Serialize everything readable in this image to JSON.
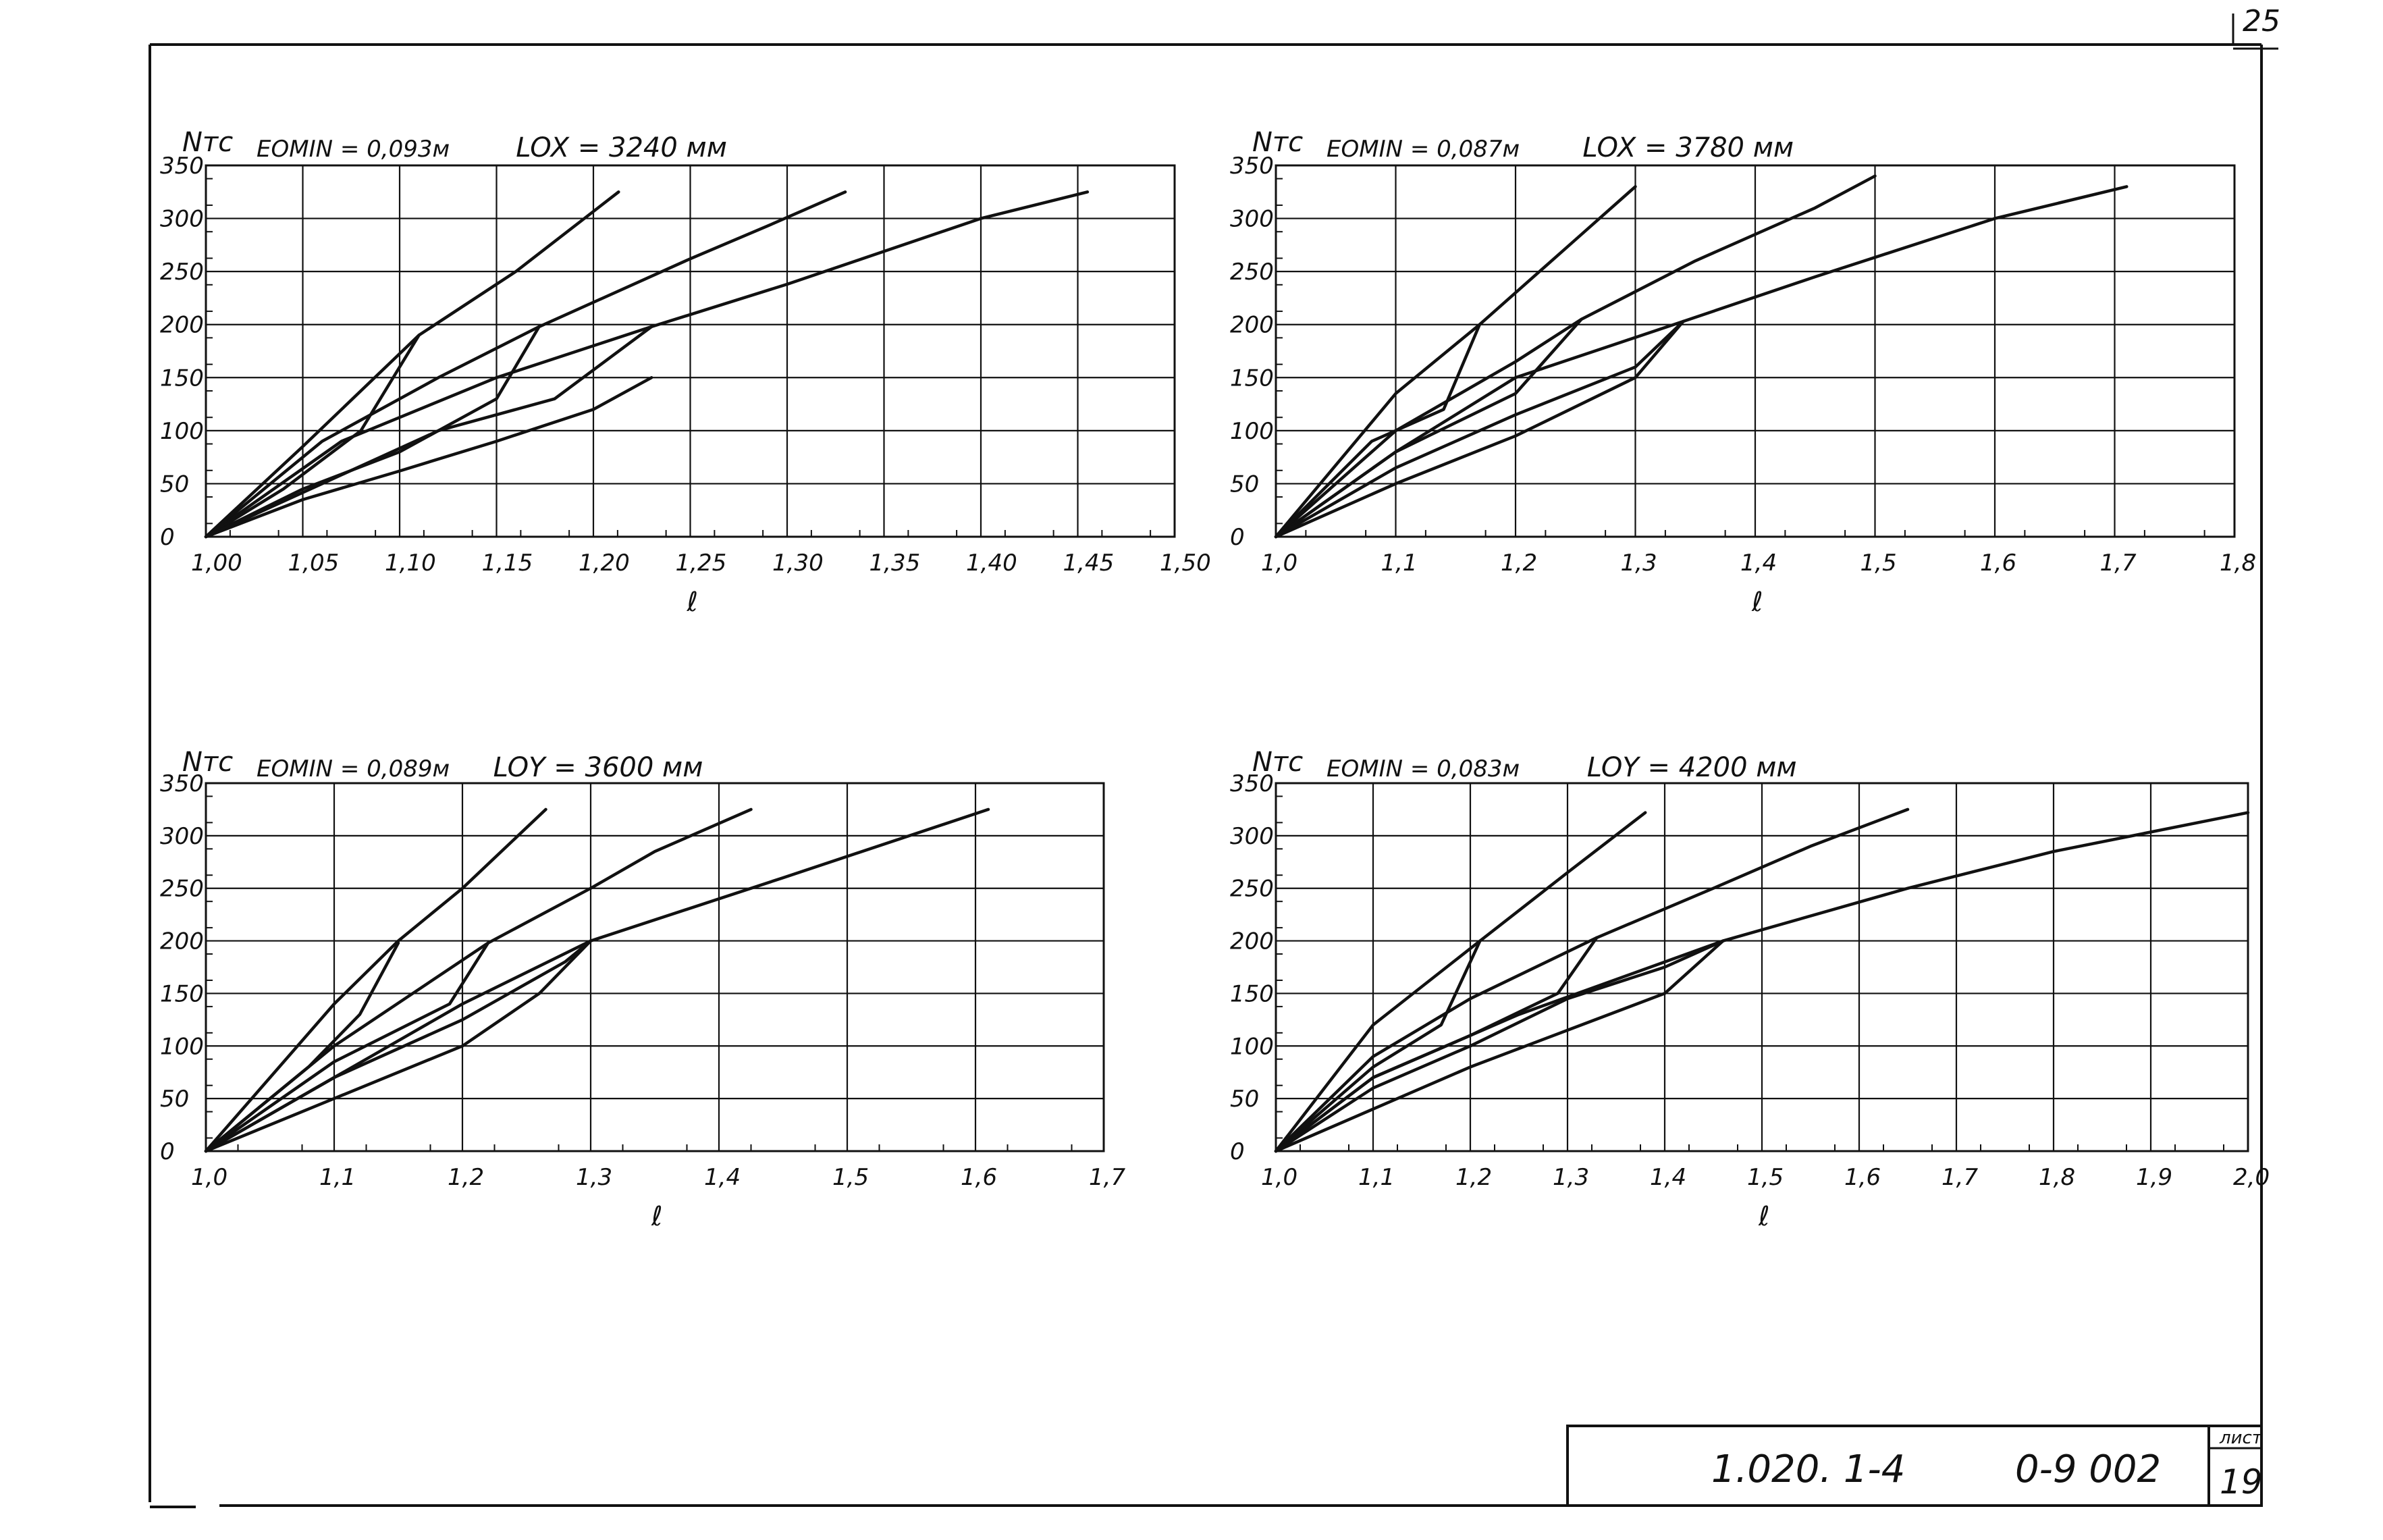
{
  "page_number": "25",
  "stamp": {
    "code": "1.020. 1-4",
    "doc": "0-9 002",
    "sheet_label": "лист",
    "sheet_number": "19"
  },
  "chart_data": [
    {
      "type": "line",
      "ylabel": "Nтс",
      "xlabel": "ℓ",
      "eomin_label": "EOMIN = 0,093м",
      "l_label": "LOX = 3240 мм",
      "xlim": [
        1.0,
        1.5
      ],
      "ylim": [
        0,
        350
      ],
      "grid": true,
      "x_ticks": [
        "1,00",
        "1,05",
        "1,10",
        "1,15",
        "1,20",
        "1,25",
        "1,30",
        "1,35",
        "1,40",
        "1,45",
        "1,50"
      ],
      "y_ticks": [
        "0",
        "50",
        "100",
        "150",
        "200",
        "250",
        "300",
        "350"
      ],
      "series": [
        {
          "values": [
            [
              1.0,
              0
            ],
            [
              1.05,
              85
            ],
            [
              1.11,
              190
            ],
            [
              1.16,
              250
            ],
            [
              1.213,
              325
            ]
          ]
        },
        {
          "values": [
            [
              1.0,
              0
            ],
            [
              1.06,
              90
            ],
            [
              1.12,
              150
            ],
            [
              1.172,
              198
            ],
            [
              1.25,
              262
            ],
            [
              1.29,
              293
            ],
            [
              1.33,
              325
            ]
          ]
        },
        {
          "values": [
            [
              1.0,
              0
            ],
            [
              1.07,
              90
            ],
            [
              1.15,
              150
            ],
            [
              1.23,
              198
            ],
            [
              1.3,
              238
            ],
            [
              1.4,
              300
            ],
            [
              1.455,
              325
            ]
          ]
        },
        {
          "values": [
            [
              1.0,
              0
            ],
            [
              1.05,
              35
            ],
            [
              1.1,
              62
            ],
            [
              1.15,
              90
            ],
            [
              1.2,
              120
            ],
            [
              1.23,
              150
            ]
          ]
        },
        {
          "values": [
            [
              1.0,
              0
            ],
            [
              1.04,
              45
            ],
            [
              1.08,
              100
            ],
            [
              1.11,
              190
            ]
          ]
        },
        {
          "values": [
            [
              1.0,
              0
            ],
            [
              1.05,
              45
            ],
            [
              1.1,
              80
            ],
            [
              1.15,
              130
            ],
            [
              1.172,
              198
            ]
          ]
        },
        {
          "values": [
            [
              1.0,
              0
            ],
            [
              1.06,
              50
            ],
            [
              1.12,
              100
            ],
            [
              1.18,
              130
            ],
            [
              1.23,
              198
            ]
          ]
        }
      ]
    },
    {
      "type": "line",
      "ylabel": "Nтс",
      "xlabel": "ℓ",
      "eomin_label": "EOMIN = 0,087м",
      "l_label": "LOX = 3780 мм",
      "xlim": [
        1.0,
        1.8
      ],
      "ylim": [
        0,
        350
      ],
      "grid": true,
      "x_ticks": [
        "1,0",
        "1,1",
        "1,2",
        "1,3",
        "1,4",
        "1,5",
        "1,6",
        "1,7",
        "1,8"
      ],
      "y_ticks": [
        "0",
        "50",
        "100",
        "150",
        "200",
        "250",
        "300",
        "350"
      ],
      "series": [
        {
          "values": [
            [
              1.0,
              0
            ],
            [
              1.1,
              135
            ],
            [
              1.17,
              200
            ],
            [
              1.25,
              280
            ],
            [
              1.3,
              330
            ]
          ]
        },
        {
          "values": [
            [
              1.0,
              0
            ],
            [
              1.1,
              100
            ],
            [
              1.2,
              165
            ],
            [
              1.255,
              205
            ],
            [
              1.35,
              260
            ],
            [
              1.45,
              310
            ],
            [
              1.5,
              340
            ]
          ]
        },
        {
          "values": [
            [
              1.0,
              0
            ],
            [
              1.1,
              80
            ],
            [
              1.2,
              150
            ],
            [
              1.34,
              203
            ],
            [
              1.45,
              245
            ],
            [
              1.6,
              300
            ],
            [
              1.71,
              330
            ]
          ]
        },
        {
          "values": [
            [
              1.0,
              0
            ],
            [
              1.1,
              50
            ],
            [
              1.2,
              95
            ],
            [
              1.3,
              150
            ],
            [
              1.34,
              203
            ]
          ]
        },
        {
          "values": [
            [
              1.0,
              0
            ],
            [
              1.08,
              90
            ],
            [
              1.14,
              120
            ],
            [
              1.17,
              200
            ]
          ]
        },
        {
          "values": [
            [
              1.0,
              0
            ],
            [
              1.1,
              80
            ],
            [
              1.2,
              135
            ],
            [
              1.255,
              205
            ]
          ]
        },
        {
          "values": [
            [
              1.0,
              0
            ],
            [
              1.1,
              65
            ],
            [
              1.2,
              115
            ],
            [
              1.3,
              160
            ],
            [
              1.34,
              203
            ]
          ]
        }
      ]
    },
    {
      "type": "line",
      "ylabel": "Nтс",
      "xlabel": "ℓ",
      "eomin_label": "EOMIN = 0,089м",
      "l_label": "LOY = 3600 мм",
      "xlim": [
        1.0,
        1.7
      ],
      "ylim": [
        0,
        350
      ],
      "grid": true,
      "x_ticks": [
        "1,0",
        "1,1",
        "1,2",
        "1,3",
        "1,4",
        "1,5",
        "1,6",
        "1,7"
      ],
      "y_ticks": [
        "0",
        "50",
        "100",
        "150",
        "200",
        "250",
        "300",
        "350"
      ],
      "series": [
        {
          "values": [
            [
              1.0,
              0
            ],
            [
              1.1,
              140
            ],
            [
              1.15,
              200
            ],
            [
              1.2,
              250
            ],
            [
              1.265,
              325
            ]
          ]
        },
        {
          "values": [
            [
              1.0,
              0
            ],
            [
              1.1,
              100
            ],
            [
              1.22,
              198
            ],
            [
              1.3,
              250
            ],
            [
              1.35,
              285
            ],
            [
              1.425,
              325
            ]
          ]
        },
        {
          "values": [
            [
              1.0,
              0
            ],
            [
              1.1,
              70
            ],
            [
              1.2,
              140
            ],
            [
              1.3,
              200
            ],
            [
              1.45,
              260
            ],
            [
              1.61,
              325
            ]
          ]
        },
        {
          "values": [
            [
              1.0,
              0
            ],
            [
              1.1,
              50
            ],
            [
              1.2,
              100
            ],
            [
              1.26,
              150
            ],
            [
              1.3,
              200
            ]
          ]
        },
        {
          "values": [
            [
              1.0,
              0
            ],
            [
              1.08,
              80
            ],
            [
              1.12,
              130
            ],
            [
              1.15,
              198
            ]
          ]
        },
        {
          "values": [
            [
              1.0,
              0
            ],
            [
              1.1,
              85
            ],
            [
              1.19,
              140
            ],
            [
              1.22,
              198
            ]
          ]
        },
        {
          "values": [
            [
              1.0,
              0
            ],
            [
              1.1,
              70
            ],
            [
              1.2,
              125
            ],
            [
              1.28,
              180
            ],
            [
              1.3,
              200
            ]
          ]
        }
      ]
    },
    {
      "type": "line",
      "ylabel": "Nтс",
      "xlabel": "ℓ",
      "eomin_label": "EOMIN = 0,083м",
      "l_label": "LOY = 4200 мм",
      "xlim": [
        1.0,
        2.0
      ],
      "ylim": [
        0,
        350
      ],
      "grid": true,
      "x_ticks": [
        "1,0",
        "1,1",
        "1,2",
        "1,3",
        "1,4",
        "1,5",
        "1,6",
        "1,7",
        "1,8",
        "1,9",
        "2,0"
      ],
      "y_ticks": [
        "0",
        "50",
        "100",
        "150",
        "200",
        "250",
        "300",
        "350"
      ],
      "series": [
        {
          "values": [
            [
              1.0,
              0
            ],
            [
              1.1,
              120
            ],
            [
              1.21,
              200
            ],
            [
              1.3,
              265
            ],
            [
              1.38,
              322
            ]
          ]
        },
        {
          "values": [
            [
              1.0,
              0
            ],
            [
              1.1,
              90
            ],
            [
              1.2,
              145
            ],
            [
              1.33,
              203
            ],
            [
              1.45,
              250
            ],
            [
              1.55,
              290
            ],
            [
              1.65,
              325
            ]
          ]
        },
        {
          "values": [
            [
              1.0,
              0
            ],
            [
              1.1,
              70
            ],
            [
              1.25,
              130
            ],
            [
              1.46,
              200
            ],
            [
              1.65,
              250
            ],
            [
              1.8,
              285
            ],
            [
              2.0,
              322
            ]
          ]
        },
        {
          "values": [
            [
              1.0,
              0
            ],
            [
              1.1,
              40
            ],
            [
              1.2,
              80
            ],
            [
              1.3,
              115
            ],
            [
              1.4,
              150
            ],
            [
              1.46,
              200
            ]
          ]
        },
        {
          "values": [
            [
              1.0,
              0
            ],
            [
              1.1,
              80
            ],
            [
              1.17,
              120
            ],
            [
              1.21,
              200
            ]
          ]
        },
        {
          "values": [
            [
              1.0,
              0
            ],
            [
              1.1,
              70
            ],
            [
              1.2,
              110
            ],
            [
              1.29,
              150
            ],
            [
              1.33,
              203
            ]
          ]
        },
        {
          "values": [
            [
              1.0,
              0
            ],
            [
              1.1,
              60
            ],
            [
              1.2,
              100
            ],
            [
              1.3,
              145
            ],
            [
              1.4,
              175
            ],
            [
              1.46,
              200
            ]
          ]
        }
      ]
    }
  ]
}
